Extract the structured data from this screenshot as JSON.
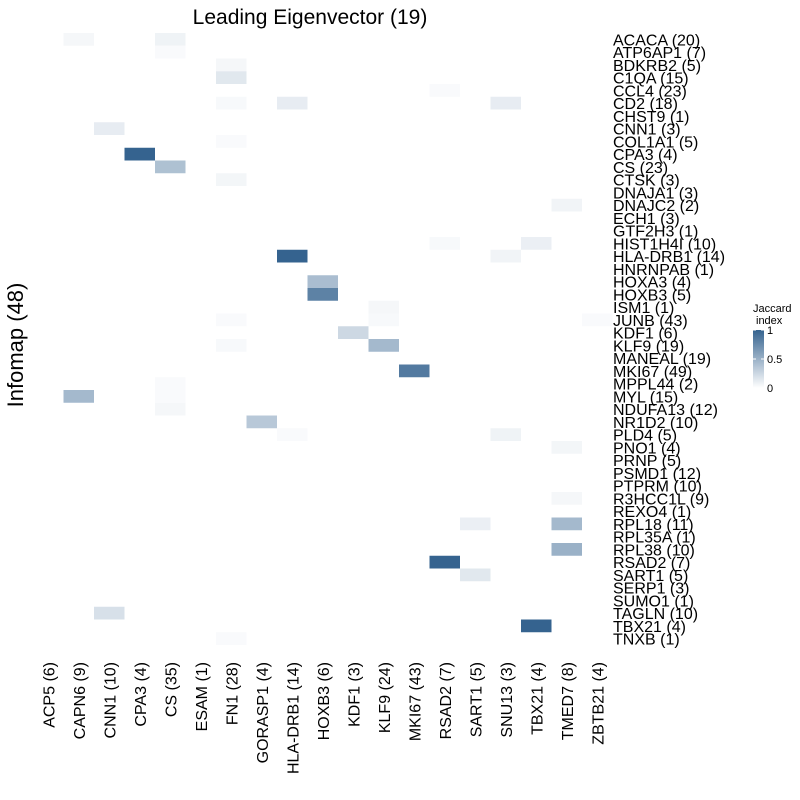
{
  "chart_data": {
    "type": "heatmap",
    "title": "Leading Eigenvector (19)",
    "xlabel": "",
    "ylabel": "Infomap (48)",
    "x_categories": [
      "ACP5 (6)",
      "CAPN6 (9)",
      "CNN1 (10)",
      "CPA3 (4)",
      "CS (35)",
      "ESAM (1)",
      "FN1 (28)",
      "GORASP1 (4)",
      "HLA-DRB1 (14)",
      "HOXB3 (6)",
      "KDF1 (3)",
      "KLF9 (24)",
      "MKI67 (43)",
      "RSAD2 (7)",
      "SART1 (5)",
      "SNU13 (3)",
      "TBX21 (4)",
      "TMED7 (8)",
      "ZBTB21 (4)"
    ],
    "y_categories": [
      "ACACA (20)",
      "ATP6AP1 (7)",
      "BDKRB2 (5)",
      "C1QA (15)",
      "CCL4 (23)",
      "CD2 (18)",
      "CHST9 (1)",
      "CNN1 (3)",
      "COL1A1 (5)",
      "CPA3 (4)",
      "CS (23)",
      "CTSK (3)",
      "DNAJA1 (3)",
      "DNAJC2 (2)",
      "ECH1 (3)",
      "GTF2H3 (1)",
      "HIST1H4I (10)",
      "HLA-DRB1 (14)",
      "HNRNPAB (1)",
      "HOXA3 (4)",
      "HOXB3 (5)",
      "ISM1 (1)",
      "JUNB (43)",
      "KDF1 (6)",
      "KLF9 (19)",
      "MANEAL (19)",
      "MKI67 (49)",
      "MPPL44 (2)",
      "MYL (15)",
      "NDUFA13 (12)",
      "NR1D2 (10)",
      "PLD4 (5)",
      "PNO1 (4)",
      "PRNP (5)",
      "PSMD1 (12)",
      "PTPRM (10)",
      "R3HCC1L (9)",
      "REXO4 (1)",
      "RPL18 (11)",
      "RPL35A (1)",
      "RPL38 (10)",
      "RSAD2 (7)",
      "SART1 (5)",
      "SERP1 (3)",
      "SUMO1 (1)",
      "TAGLN (10)",
      "TBX21 (4)",
      "TNXB (1)"
    ],
    "cells": [
      {
        "row": "ACACA (20)",
        "col": "CAPN6 (9)",
        "value": 0.05
      },
      {
        "row": "ACACA (20)",
        "col": "CS (35)",
        "value": 0.08
      },
      {
        "row": "ATP6AP1 (7)",
        "col": "CS (35)",
        "value": 0.03
      },
      {
        "row": "BDKRB2 (5)",
        "col": "FN1 (28)",
        "value": 0.05
      },
      {
        "row": "C1QA (15)",
        "col": "FN1 (28)",
        "value": 0.15
      },
      {
        "row": "CCL4 (23)",
        "col": "RSAD2 (7)",
        "value": 0.03
      },
      {
        "row": "CD2 (18)",
        "col": "FN1 (28)",
        "value": 0.04
      },
      {
        "row": "CD2 (18)",
        "col": "HLA-DRB1 (14)",
        "value": 0.12
      },
      {
        "row": "CD2 (18)",
        "col": "SNU13 (3)",
        "value": 0.12
      },
      {
        "row": "CNN1 (3)",
        "col": "CNN1 (10)",
        "value": 0.12
      },
      {
        "row": "COL1A1 (5)",
        "col": "FN1 (28)",
        "value": 0.03
      },
      {
        "row": "CPA3 (4)",
        "col": "CPA3 (4)",
        "value": 1.0
      },
      {
        "row": "CS (23)",
        "col": "CS (35)",
        "value": 0.4
      },
      {
        "row": "CTSK (3)",
        "col": "FN1 (28)",
        "value": 0.06
      },
      {
        "row": "DNAJC2 (2)",
        "col": "TMED7 (8)",
        "value": 0.07
      },
      {
        "row": "HIST1H4I (10)",
        "col": "RSAD2 (7)",
        "value": 0.04
      },
      {
        "row": "HIST1H4I (10)",
        "col": "TBX21 (4)",
        "value": 0.1
      },
      {
        "row": "HLA-DRB1 (14)",
        "col": "HLA-DRB1 (14)",
        "value": 1.0
      },
      {
        "row": "HLA-DRB1 (14)",
        "col": "SNU13 (3)",
        "value": 0.07
      },
      {
        "row": "HOXA3 (4)",
        "col": "HOXB3 (6)",
        "value": 0.42
      },
      {
        "row": "HOXB3 (5)",
        "col": "HOXB3 (6)",
        "value": 0.8
      },
      {
        "row": "ISM1 (1)",
        "col": "KLF9 (24)",
        "value": 0.05
      },
      {
        "row": "JUNB (43)",
        "col": "FN1 (28)",
        "value": 0.03
      },
      {
        "row": "JUNB (43)",
        "col": "KLF9 (24)",
        "value": 0.04
      },
      {
        "row": "JUNB (43)",
        "col": "ZBTB21 (4)",
        "value": 0.03
      },
      {
        "row": "KDF1 (6)",
        "col": "KDF1 (3)",
        "value": 0.25
      },
      {
        "row": "KLF9 (19)",
        "col": "FN1 (28)",
        "value": 0.04
      },
      {
        "row": "KLF9 (19)",
        "col": "KLF9 (24)",
        "value": 0.45
      },
      {
        "row": "MKI67 (49)",
        "col": "MKI67 (43)",
        "value": 0.85
      },
      {
        "row": "MPPL44 (2)",
        "col": "CS (35)",
        "value": 0.03
      },
      {
        "row": "MYL (15)",
        "col": "CAPN6 (9)",
        "value": 0.45
      },
      {
        "row": "MYL (15)",
        "col": "CS (35)",
        "value": 0.03
      },
      {
        "row": "NDUFA13 (12)",
        "col": "CS (35)",
        "value": 0.05
      },
      {
        "row": "NR1D2 (10)",
        "col": "GORASP1 (4)",
        "value": 0.35
      },
      {
        "row": "PLD4 (5)",
        "col": "HLA-DRB1 (14)",
        "value": 0.03
      },
      {
        "row": "PLD4 (5)",
        "col": "SNU13 (3)",
        "value": 0.08
      },
      {
        "row": "PNO1 (4)",
        "col": "TMED7 (8)",
        "value": 0.06
      },
      {
        "row": "R3HCC1L (9)",
        "col": "TMED7 (8)",
        "value": 0.05
      },
      {
        "row": "RPL18 (11)",
        "col": "SART1 (5)",
        "value": 0.1
      },
      {
        "row": "RPL18 (11)",
        "col": "TMED7 (8)",
        "value": 0.45
      },
      {
        "row": "RPL38 (10)",
        "col": "TMED7 (8)",
        "value": 0.5
      },
      {
        "row": "RSAD2 (7)",
        "col": "RSAD2 (7)",
        "value": 1.0
      },
      {
        "row": "SART1 (5)",
        "col": "SART1 (5)",
        "value": 0.15
      },
      {
        "row": "TAGLN (10)",
        "col": "CNN1 (10)",
        "value": 0.2
      },
      {
        "row": "TBX21 (4)",
        "col": "TBX21 (4)",
        "value": 1.0
      },
      {
        "row": "TNXB (1)",
        "col": "FN1 (28)",
        "value": 0.03
      }
    ],
    "legend": {
      "title_line1": "Jaccard",
      "title_line2": "index",
      "ticks": [
        {
          "value": 1,
          "label": "1"
        },
        {
          "value": 0.5,
          "label": "0.5"
        },
        {
          "value": 0,
          "label": "0"
        }
      ],
      "color_low": "#ffffff",
      "color_high": "#35638f",
      "placement": "right"
    },
    "grid": false,
    "value_range": [
      0,
      1
    ]
  }
}
